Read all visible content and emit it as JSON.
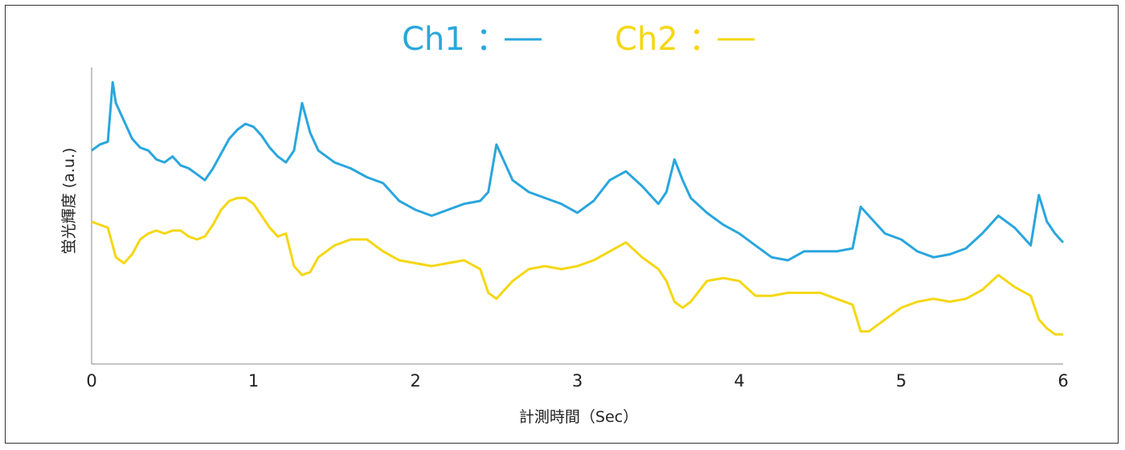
{
  "chart_data": {
    "type": "line",
    "xlabel": "計測時間（Sec）",
    "ylabel": "蛍光輝度 (a.u.)",
    "xlim": [
      0,
      6
    ],
    "ylim": [
      0,
      1
    ],
    "xticks": [
      "0",
      "1",
      "2",
      "3",
      "4",
      "5",
      "6"
    ],
    "legend_position": "top-center",
    "grid": false,
    "x": [
      0,
      0.05,
      0.1,
      0.13,
      0.15,
      0.2,
      0.25,
      0.3,
      0.35,
      0.4,
      0.45,
      0.5,
      0.55,
      0.6,
      0.65,
      0.7,
      0.75,
      0.8,
      0.85,
      0.9,
      0.95,
      1.0,
      1.05,
      1.1,
      1.15,
      1.2,
      1.25,
      1.3,
      1.35,
      1.4,
      1.5,
      1.6,
      1.7,
      1.8,
      1.9,
      2.0,
      2.1,
      2.2,
      2.3,
      2.4,
      2.45,
      2.5,
      2.6,
      2.7,
      2.8,
      2.9,
      3.0,
      3.1,
      3.2,
      3.3,
      3.4,
      3.5,
      3.55,
      3.6,
      3.65,
      3.7,
      3.8,
      3.9,
      4.0,
      4.1,
      4.2,
      4.3,
      4.4,
      4.5,
      4.6,
      4.7,
      4.75,
      4.8,
      4.9,
      5.0,
      5.1,
      5.2,
      5.3,
      5.4,
      5.5,
      5.6,
      5.7,
      5.8,
      5.85,
      5.9,
      5.95,
      6.0
    ],
    "series": [
      {
        "name": "Ch1",
        "color": "#29a6dd",
        "values": [
          0.72,
          0.74,
          0.75,
          0.95,
          0.88,
          0.82,
          0.76,
          0.73,
          0.72,
          0.69,
          0.68,
          0.7,
          0.67,
          0.66,
          0.64,
          0.62,
          0.66,
          0.71,
          0.76,
          0.79,
          0.81,
          0.8,
          0.77,
          0.73,
          0.7,
          0.68,
          0.72,
          0.88,
          0.78,
          0.72,
          0.68,
          0.66,
          0.63,
          0.61,
          0.55,
          0.52,
          0.5,
          0.52,
          0.54,
          0.55,
          0.58,
          0.74,
          0.62,
          0.58,
          0.56,
          0.54,
          0.51,
          0.55,
          0.62,
          0.65,
          0.6,
          0.54,
          0.58,
          0.69,
          0.62,
          0.56,
          0.51,
          0.47,
          0.44,
          0.4,
          0.36,
          0.35,
          0.38,
          0.38,
          0.38,
          0.39,
          0.53,
          0.5,
          0.44,
          0.42,
          0.38,
          0.36,
          0.37,
          0.39,
          0.44,
          0.5,
          0.46,
          0.4,
          0.57,
          0.48,
          0.44,
          0.41
        ]
      },
      {
        "name": "Ch2",
        "color": "#f5d712",
        "values": [
          0.48,
          0.47,
          0.46,
          0.4,
          0.36,
          0.34,
          0.37,
          0.42,
          0.44,
          0.45,
          0.44,
          0.45,
          0.45,
          0.43,
          0.42,
          0.43,
          0.47,
          0.52,
          0.55,
          0.56,
          0.56,
          0.54,
          0.5,
          0.46,
          0.43,
          0.44,
          0.33,
          0.3,
          0.31,
          0.36,
          0.4,
          0.42,
          0.42,
          0.38,
          0.35,
          0.34,
          0.33,
          0.34,
          0.35,
          0.32,
          0.24,
          0.22,
          0.28,
          0.32,
          0.33,
          0.32,
          0.33,
          0.35,
          0.38,
          0.41,
          0.36,
          0.32,
          0.28,
          0.21,
          0.19,
          0.21,
          0.28,
          0.29,
          0.28,
          0.23,
          0.23,
          0.24,
          0.24,
          0.24,
          0.22,
          0.2,
          0.11,
          0.11,
          0.15,
          0.19,
          0.21,
          0.22,
          0.21,
          0.22,
          0.25,
          0.3,
          0.26,
          0.23,
          0.15,
          0.12,
          0.1,
          0.1
        ]
      }
    ]
  }
}
